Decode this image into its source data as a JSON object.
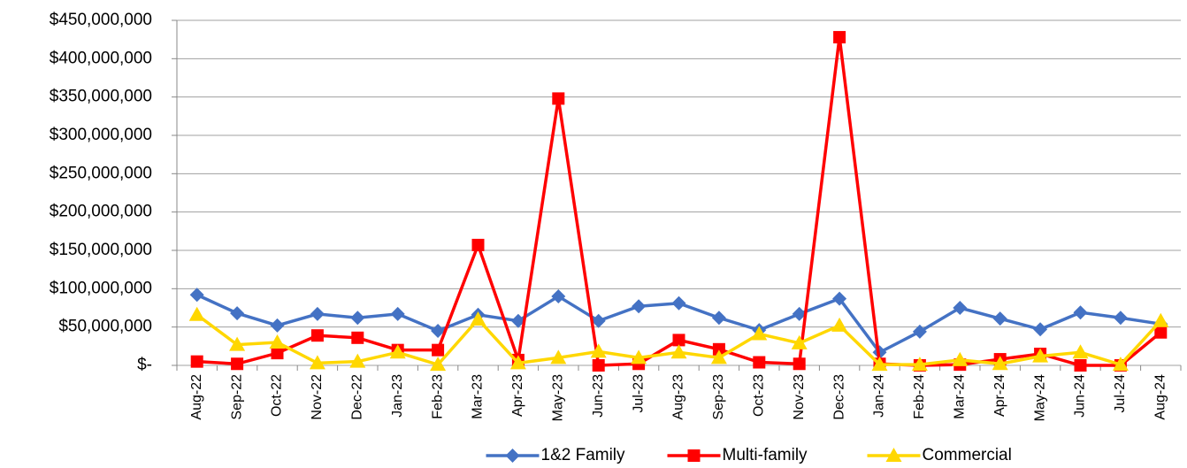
{
  "chart_data": {
    "type": "line",
    "categories": [
      "Aug-22",
      "Sep-22",
      "Oct-22",
      "Nov-22",
      "Dec-22",
      "Jan-23",
      "Feb-23",
      "Mar-23",
      "Apr-23",
      "May-23",
      "Jun-23",
      "Jul-23",
      "Aug-23",
      "Sep-23",
      "Oct-23",
      "Nov-23",
      "Dec-23",
      "Jan-24",
      "Feb-24",
      "Mar-24",
      "Apr-24",
      "May-24",
      "Jun-24",
      "Jul-24",
      "Aug-24"
    ],
    "series": [
      {
        "name": "1&2 Family",
        "color": "#4472c4",
        "marker": "diamond",
        "values": [
          92000000,
          68000000,
          52000000,
          67000000,
          62000000,
          67000000,
          45000000,
          66000000,
          58000000,
          90000000,
          58000000,
          77000000,
          81000000,
          62000000,
          46000000,
          67000000,
          87000000,
          17000000,
          44000000,
          75000000,
          61000000,
          47000000,
          69000000,
          62000000,
          54000000
        ]
      },
      {
        "name": "Multi-family",
        "color": "#ff0000",
        "marker": "square",
        "values": [
          5000000,
          2000000,
          16000000,
          39000000,
          36000000,
          20000000,
          20000000,
          157000000,
          7000000,
          348000000,
          0,
          2000000,
          33000000,
          21000000,
          4000000,
          2000000,
          428000000,
          2000000,
          0,
          1000000,
          8000000,
          15000000,
          0,
          0,
          43000000
        ]
      },
      {
        "name": "Commercial",
        "color": "#ffd700",
        "marker": "triangle",
        "values": [
          66000000,
          27000000,
          30000000,
          3000000,
          5000000,
          17000000,
          1000000,
          60000000,
          3000000,
          10000000,
          18000000,
          10000000,
          17000000,
          10000000,
          41000000,
          29000000,
          52000000,
          1000000,
          1000000,
          7000000,
          2000000,
          12000000,
          17000000,
          1000000,
          58000000
        ]
      }
    ],
    "ylim": [
      0,
      450000000
    ],
    "yticks": [
      {
        "value": 0,
        "label": "$-"
      },
      {
        "value": 50000000,
        "label": "$50,000,000"
      },
      {
        "value": 100000000,
        "label": "$100,000,000"
      },
      {
        "value": 150000000,
        "label": "$150,000,000"
      },
      {
        "value": 200000000,
        "label": "$200,000,000"
      },
      {
        "value": 250000000,
        "label": "$250,000,000"
      },
      {
        "value": 300000000,
        "label": "$300,000,000"
      },
      {
        "value": 350000000,
        "label": "$350,000,000"
      },
      {
        "value": 400000000,
        "label": "$400,000,000"
      },
      {
        "value": 450000000,
        "label": "$450,000,000"
      }
    ],
    "grid": true,
    "legend": "bottom"
  }
}
